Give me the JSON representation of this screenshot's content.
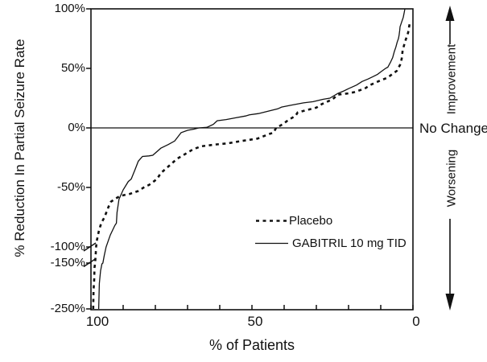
{
  "figure": {
    "background": "#ffffff",
    "ink": "#111111"
  },
  "chart_data": {
    "type": "line",
    "title": "",
    "xlabel": "% of Patients",
    "ylabel": "% Reduction In Partial Seizure Rate",
    "x_axis": {
      "min": 0,
      "max": 100,
      "reversed": true,
      "tick_labels": [
        "100",
        "50",
        "0"
      ],
      "tick_values": [
        100,
        50,
        0
      ],
      "minor_tick_step": 10
    },
    "y_axis": {
      "unit": "%",
      "tick_labels": [
        "100%",
        "50%",
        "0%",
        "-50%",
        "-100%",
        "-150%",
        "-250%"
      ],
      "tick_values": [
        100,
        50,
        0,
        -50,
        -100,
        -150,
        -250
      ],
      "axis_break_between": [
        -100,
        -150
      ]
    },
    "zero_line_label": "No Change",
    "direction_labels": {
      "up": "Improvement",
      "down": "Worsening"
    },
    "legend_position": "inside-lower-right",
    "grid": false,
    "series": [
      {
        "id": "placebo",
        "name": "Placebo",
        "style": "dashed",
        "points": [
          [
            99.3,
            -250
          ],
          [
            99.2,
            -210
          ],
          [
            99.0,
            -187
          ],
          [
            98.9,
            -160
          ],
          [
            98.7,
            -150
          ],
          [
            98.5,
            -118
          ],
          [
            98.4,
            -100
          ],
          [
            98.2,
            -95
          ],
          [
            97.5,
            -86
          ],
          [
            96.8,
            -80
          ],
          [
            95.8,
            -75
          ],
          [
            94.5,
            -66
          ],
          [
            93.8,
            -62
          ],
          [
            92.5,
            -59.5
          ],
          [
            90.8,
            -57
          ],
          [
            88.0,
            -55.5
          ],
          [
            85.3,
            -53
          ],
          [
            83.0,
            -49
          ],
          [
            82.0,
            -48
          ],
          [
            79.5,
            -43
          ],
          [
            78.3,
            -38
          ],
          [
            75.8,
            -32
          ],
          [
            73.3,
            -26
          ],
          [
            70.8,
            -22
          ],
          [
            68.3,
            -18
          ],
          [
            65.8,
            -15.5
          ],
          [
            61.5,
            -14
          ],
          [
            57.5,
            -13
          ],
          [
            53.3,
            -11
          ],
          [
            48.3,
            -9
          ],
          [
            44.5,
            -5
          ],
          [
            43.3,
            -4
          ],
          [
            42.5,
            0
          ],
          [
            40.5,
            3
          ],
          [
            38.5,
            7
          ],
          [
            36.5,
            10
          ],
          [
            35.8,
            13
          ],
          [
            33.0,
            15
          ],
          [
            30.0,
            17
          ],
          [
            28.3,
            20
          ],
          [
            25.0,
            24
          ],
          [
            23.3,
            28
          ],
          [
            20.0,
            29
          ],
          [
            18.3,
            30
          ],
          [
            15.0,
            33
          ],
          [
            13.3,
            36
          ],
          [
            10.0,
            40
          ],
          [
            8.0,
            42
          ],
          [
            6.5,
            45
          ],
          [
            5.0,
            48
          ],
          [
            4.0,
            53
          ],
          [
            3.5,
            58
          ],
          [
            3.2,
            65
          ],
          [
            2.5,
            72
          ],
          [
            1.5,
            80
          ],
          [
            1.0,
            88
          ]
        ]
      },
      {
        "id": "gabitril",
        "name": "GABITRIL 10 mg TID",
        "style": "solid",
        "points": [
          [
            97.6,
            -250
          ],
          [
            97.4,
            -195
          ],
          [
            97.2,
            -180
          ],
          [
            97.0,
            -166
          ],
          [
            96.9,
            -163
          ],
          [
            96.6,
            -152
          ],
          [
            96.3,
            -150
          ],
          [
            95.9,
            -128
          ],
          [
            95.3,
            -100
          ],
          [
            94.0,
            -90
          ],
          [
            92.6,
            -82
          ],
          [
            92.1,
            -80
          ],
          [
            91.9,
            -71
          ],
          [
            91.3,
            -60
          ],
          [
            90.0,
            -52
          ],
          [
            88.4,
            -45
          ],
          [
            87.5,
            -43
          ],
          [
            86.3,
            -35
          ],
          [
            85.3,
            -28
          ],
          [
            84.0,
            -24
          ],
          [
            82.0,
            -23.5
          ],
          [
            80.8,
            -23
          ],
          [
            78.3,
            -17
          ],
          [
            76.0,
            -14
          ],
          [
            74.0,
            -11
          ],
          [
            72.0,
            -4
          ],
          [
            70.0,
            -2
          ],
          [
            68.0,
            -1
          ],
          [
            66.5,
            0
          ],
          [
            64.0,
            0.5
          ],
          [
            62.0,
            3
          ],
          [
            60.8,
            6
          ],
          [
            58.0,
            7
          ],
          [
            55.0,
            8.5
          ],
          [
            52.0,
            10
          ],
          [
            50.8,
            11
          ],
          [
            48.0,
            12
          ],
          [
            45.0,
            14
          ],
          [
            42.0,
            16
          ],
          [
            40.8,
            17.5
          ],
          [
            38.0,
            19
          ],
          [
            36.0,
            20
          ],
          [
            34.0,
            21
          ],
          [
            31.0,
            22
          ],
          [
            28.0,
            24
          ],
          [
            25.8,
            25
          ],
          [
            23.3,
            29
          ],
          [
            21.5,
            31
          ],
          [
            20.0,
            33
          ],
          [
            17.5,
            36
          ],
          [
            15.8,
            39
          ],
          [
            14.0,
            41
          ],
          [
            12.5,
            43
          ],
          [
            11.0,
            45
          ],
          [
            10.0,
            47
          ],
          [
            8.5,
            50
          ],
          [
            7.8,
            51
          ],
          [
            7.0,
            55
          ],
          [
            6.3,
            59
          ],
          [
            5.8,
            64
          ],
          [
            5.3,
            68
          ],
          [
            4.9,
            72
          ],
          [
            4.5,
            75
          ],
          [
            4.3,
            78
          ],
          [
            4.1,
            82
          ],
          [
            4.0,
            85
          ],
          [
            3.5,
            89
          ],
          [
            3.0,
            93
          ],
          [
            2.7,
            97
          ],
          [
            2.5,
            100
          ]
        ]
      }
    ]
  }
}
